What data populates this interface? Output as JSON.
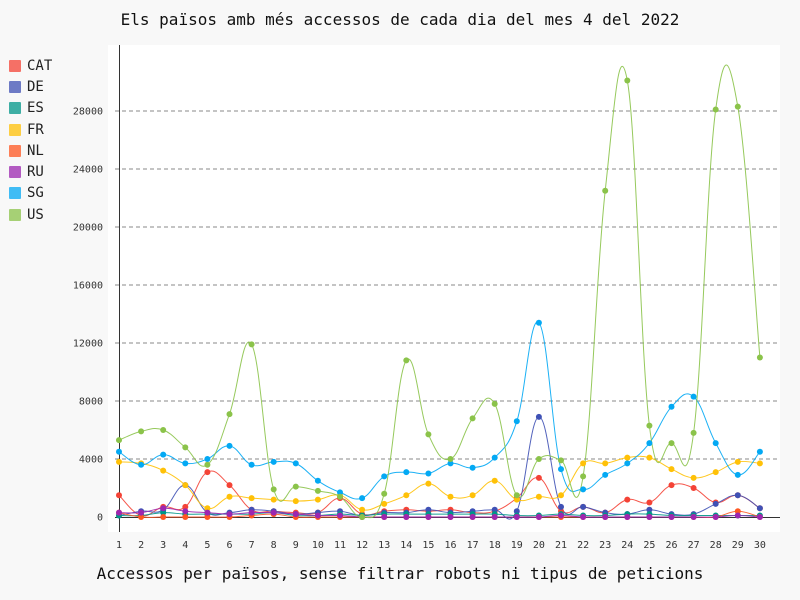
{
  "chart_data": {
    "type": "line",
    "title": "Els països amb més accessos de cada dia del mes 4 del 2022",
    "xlabel": "Accessos per països, sense filtrar robots ni tipus de peticions",
    "ylabel": "",
    "x": [
      1,
      2,
      3,
      4,
      5,
      6,
      7,
      8,
      9,
      10,
      11,
      12,
      13,
      14,
      15,
      16,
      17,
      18,
      19,
      20,
      21,
      22,
      23,
      24,
      25,
      26,
      27,
      28,
      29,
      30
    ],
    "x_tick_labels": [
      "1",
      "2",
      "3",
      "4",
      "5",
      "6",
      "7",
      "8",
      "9",
      "10",
      "11",
      "12",
      "13",
      "14",
      "15",
      "16",
      "17",
      "18",
      "19",
      "20",
      "21",
      "22",
      "23",
      "24",
      "25",
      "26",
      "27",
      "28",
      "29",
      "30"
    ],
    "y_ticks": [
      0,
      4000,
      8000,
      12000,
      16000,
      20000,
      24000,
      28000
    ],
    "y_tick_labels": [
      "0",
      "4000",
      "8000",
      "12000",
      "16000",
      "20000",
      "24000",
      "28000"
    ],
    "ylim": [
      -1000,
      32000
    ],
    "grid": "horizontal dashed",
    "legend_position": "left",
    "smooth": true,
    "series": [
      {
        "name": "CAT",
        "color": "#f44336",
        "values": [
          1500,
          100,
          700,
          700,
          3100,
          2200,
          500,
          400,
          300,
          300,
          1300,
          200,
          400,
          500,
          400,
          500,
          300,
          400,
          1300,
          2700,
          400,
          700,
          300,
          1200,
          1000,
          2200,
          2000,
          1000,
          1500,
          600
        ]
      },
      {
        "name": "DE",
        "color": "#3f51b5",
        "values": [
          100,
          400,
          500,
          2200,
          300,
          300,
          500,
          400,
          200,
          300,
          400,
          100,
          300,
          300,
          500,
          300,
          400,
          500,
          400,
          6900,
          700,
          700,
          300,
          200,
          500,
          200,
          200,
          900,
          1500,
          600
        ]
      },
      {
        "name": "ES",
        "color": "#009688",
        "values": [
          100,
          100,
          300,
          200,
          200,
          200,
          200,
          300,
          100,
          100,
          200,
          100,
          200,
          200,
          200,
          200,
          200,
          200,
          100,
          100,
          200,
          100,
          100,
          200,
          200,
          100,
          100,
          100,
          100,
          100
        ]
      },
      {
        "name": "FR",
        "color": "#ffc107",
        "values": [
          3800,
          3700,
          3200,
          2200,
          600,
          1400,
          1300,
          1200,
          1100,
          1200,
          1500,
          500,
          900,
          1500,
          2300,
          1400,
          1500,
          2500,
          1200,
          1400,
          1500,
          3700,
          3700,
          4100,
          4100,
          3300,
          2700,
          3100,
          3800,
          3700
        ]
      },
      {
        "name": "NL",
        "color": "#ff5722",
        "values": [
          300,
          0,
          0,
          0,
          0,
          0,
          100,
          200,
          0,
          0,
          0,
          0,
          0,
          0,
          0,
          0,
          0,
          0,
          0,
          0,
          0,
          0,
          0,
          0,
          0,
          0,
          0,
          0,
          400,
          0
        ]
      },
      {
        "name": "RU",
        "color": "#9c27b0",
        "values": [
          300,
          300,
          600,
          400,
          300,
          200,
          300,
          300,
          200,
          100,
          100,
          0,
          0,
          0,
          0,
          0,
          0,
          0,
          0,
          0,
          100,
          0,
          0,
          0,
          0,
          0,
          0,
          0,
          100,
          0
        ]
      },
      {
        "name": "SG",
        "color": "#03a9f4",
        "values": [
          4500,
          3600,
          4300,
          3700,
          4000,
          4900,
          3600,
          3800,
          3700,
          2500,
          1700,
          1300,
          2800,
          3100,
          3000,
          3700,
          3400,
          4100,
          6600,
          13400,
          3300,
          1900,
          2900,
          3700,
          5100,
          7600,
          8300,
          5100,
          2900,
          4500
        ]
      },
      {
        "name": "US",
        "color": "#8bc34a",
        "values": [
          5300,
          5900,
          6000,
          4800,
          3600,
          7100,
          11900,
          1900,
          2100,
          1800,
          1400,
          0,
          1600,
          10800,
          5700,
          4000,
          6800,
          7800,
          1500,
          4000,
          3900,
          2800,
          22500,
          30100,
          6300,
          5100,
          5800,
          28100,
          28300,
          11000
        ]
      }
    ]
  }
}
